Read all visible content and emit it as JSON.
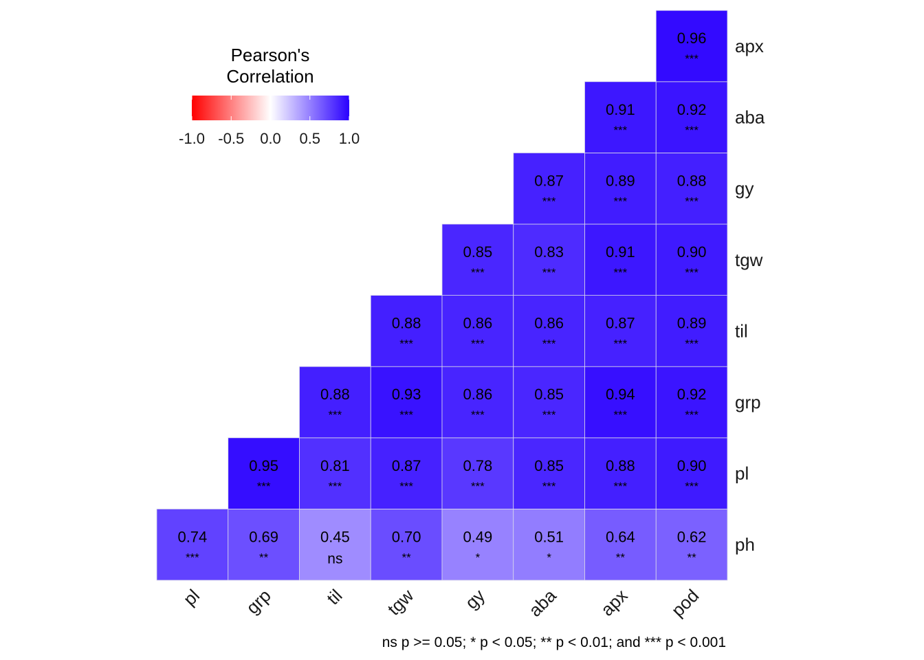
{
  "chart_data": {
    "type": "heatmap",
    "legend": {
      "title_lines": [
        "Pearson's",
        "Correlation"
      ],
      "ticks": [
        "-1.0",
        "-0.5",
        "0.0",
        "0.5",
        "1.0"
      ],
      "tick_values": [
        -1.0,
        -0.5,
        0.0,
        0.5,
        1.0
      ],
      "range": [
        -1,
        1
      ],
      "colors": {
        "low": "#ff0000",
        "mid": "#ffffff",
        "high": "#2a00ff"
      },
      "placement": "top-left"
    },
    "x_labels": [
      "pl",
      "grp",
      "til",
      "tgw",
      "gy",
      "aba",
      "apx",
      "pod"
    ],
    "y_labels": [
      "ph",
      "pl",
      "grp",
      "til",
      "tgw",
      "gy",
      "aba",
      "apx"
    ],
    "cells": [
      {
        "x": "pl",
        "y": "ph",
        "value": "0.74",
        "sig": "***"
      },
      {
        "x": "grp",
        "y": "ph",
        "value": "0.69",
        "sig": "**"
      },
      {
        "x": "til",
        "y": "ph",
        "value": "0.45",
        "sig": "ns"
      },
      {
        "x": "tgw",
        "y": "ph",
        "value": "0.70",
        "sig": "**"
      },
      {
        "x": "gy",
        "y": "ph",
        "value": "0.49",
        "sig": "*"
      },
      {
        "x": "aba",
        "y": "ph",
        "value": "0.51",
        "sig": "*"
      },
      {
        "x": "apx",
        "y": "ph",
        "value": "0.64",
        "sig": "**"
      },
      {
        "x": "pod",
        "y": "ph",
        "value": "0.62",
        "sig": "**"
      },
      {
        "x": "grp",
        "y": "pl",
        "value": "0.95",
        "sig": "***"
      },
      {
        "x": "til",
        "y": "pl",
        "value": "0.81",
        "sig": "***"
      },
      {
        "x": "tgw",
        "y": "pl",
        "value": "0.87",
        "sig": "***"
      },
      {
        "x": "gy",
        "y": "pl",
        "value": "0.78",
        "sig": "***"
      },
      {
        "x": "aba",
        "y": "pl",
        "value": "0.85",
        "sig": "***"
      },
      {
        "x": "apx",
        "y": "pl",
        "value": "0.88",
        "sig": "***"
      },
      {
        "x": "pod",
        "y": "pl",
        "value": "0.90",
        "sig": "***"
      },
      {
        "x": "til",
        "y": "grp",
        "value": "0.88",
        "sig": "***"
      },
      {
        "x": "tgw",
        "y": "grp",
        "value": "0.93",
        "sig": "***"
      },
      {
        "x": "gy",
        "y": "grp",
        "value": "0.86",
        "sig": "***"
      },
      {
        "x": "aba",
        "y": "grp",
        "value": "0.85",
        "sig": "***"
      },
      {
        "x": "apx",
        "y": "grp",
        "value": "0.94",
        "sig": "***"
      },
      {
        "x": "pod",
        "y": "grp",
        "value": "0.92",
        "sig": "***"
      },
      {
        "x": "tgw",
        "y": "til",
        "value": "0.88",
        "sig": "***"
      },
      {
        "x": "gy",
        "y": "til",
        "value": "0.86",
        "sig": "***"
      },
      {
        "x": "aba",
        "y": "til",
        "value": "0.86",
        "sig": "***"
      },
      {
        "x": "apx",
        "y": "til",
        "value": "0.87",
        "sig": "***"
      },
      {
        "x": "pod",
        "y": "til",
        "value": "0.89",
        "sig": "***"
      },
      {
        "x": "gy",
        "y": "tgw",
        "value": "0.85",
        "sig": "***"
      },
      {
        "x": "aba",
        "y": "tgw",
        "value": "0.83",
        "sig": "***"
      },
      {
        "x": "apx",
        "y": "tgw",
        "value": "0.91",
        "sig": "***"
      },
      {
        "x": "pod",
        "y": "tgw",
        "value": "0.90",
        "sig": "***"
      },
      {
        "x": "aba",
        "y": "gy",
        "value": "0.87",
        "sig": "***"
      },
      {
        "x": "apx",
        "y": "gy",
        "value": "0.89",
        "sig": "***"
      },
      {
        "x": "pod",
        "y": "gy",
        "value": "0.88",
        "sig": "***"
      },
      {
        "x": "apx",
        "y": "aba",
        "value": "0.91",
        "sig": "***"
      },
      {
        "x": "pod",
        "y": "aba",
        "value": "0.92",
        "sig": "***"
      },
      {
        "x": "pod",
        "y": "apx",
        "value": "0.96",
        "sig": "***"
      }
    ],
    "caption": "ns p >= 0.05; * p < 0.05; ** p < 0.01; and *** p < 0.001",
    "grid": false
  }
}
